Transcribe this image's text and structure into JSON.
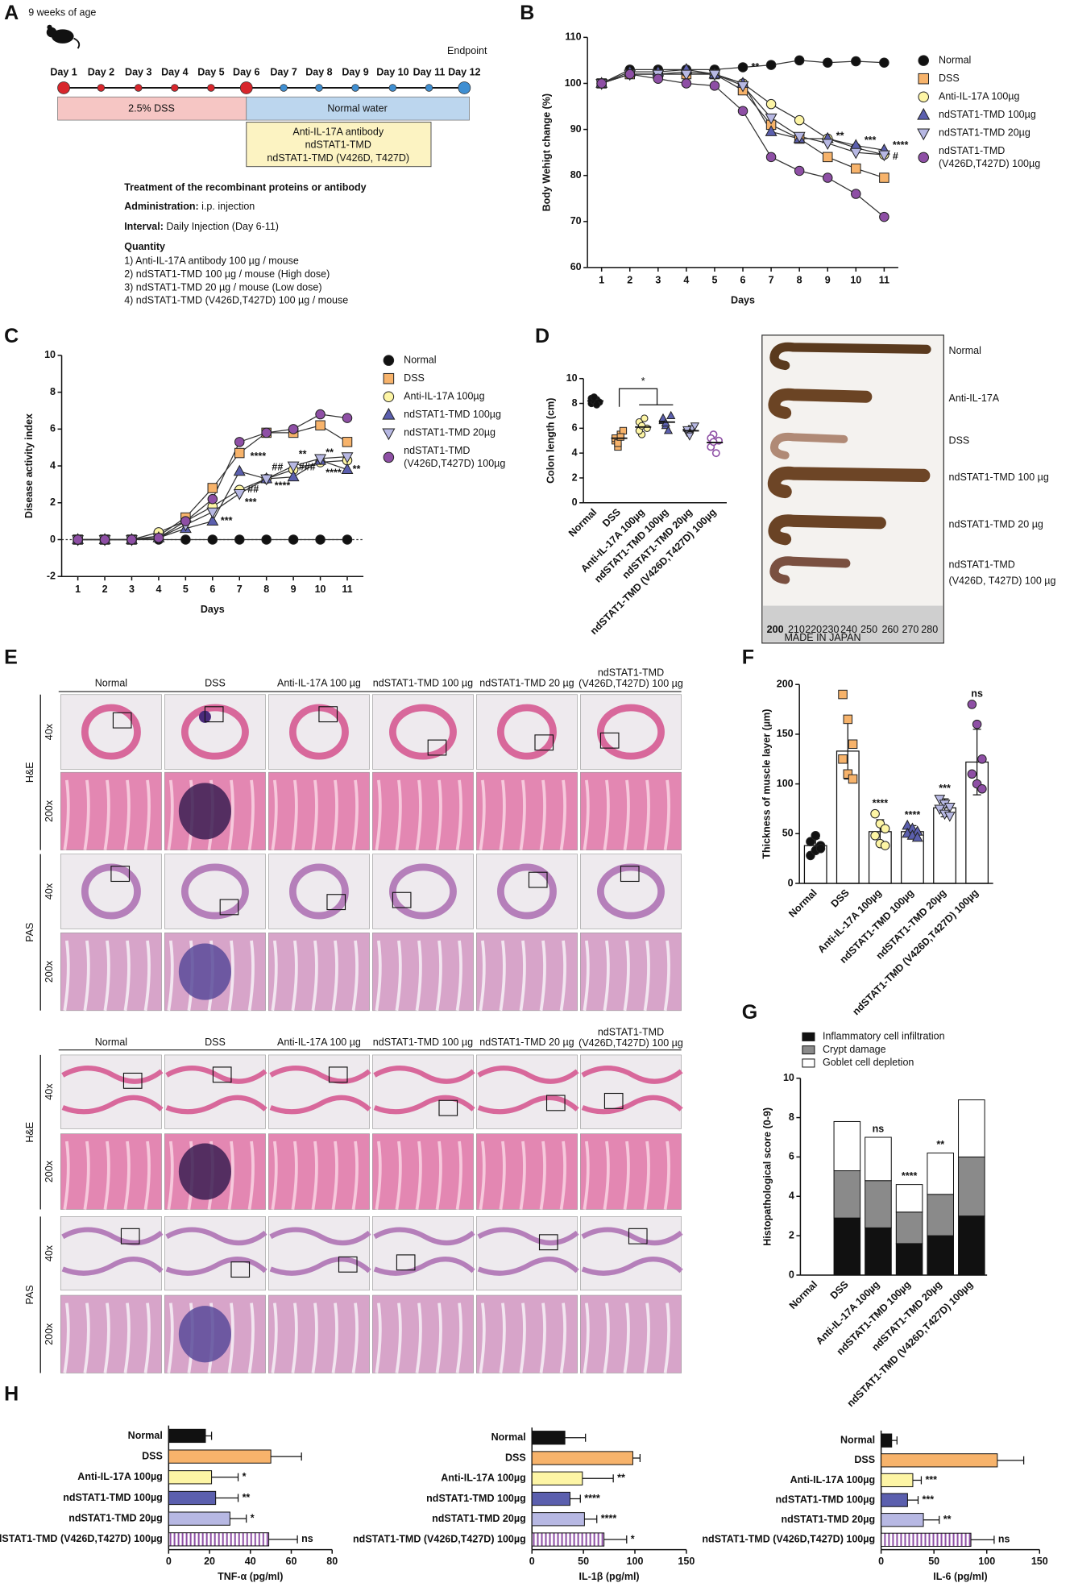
{
  "panel_a": {
    "label": "A",
    "age": "9 weeks of age",
    "endpoint": "Endpoint",
    "days": [
      "Day 1",
      "Day 2",
      "Day 3",
      "Day 4",
      "Day 5",
      "Day 6",
      "Day 7",
      "Day 8",
      "Day 9",
      "Day 10",
      "Day 11",
      "Day 12"
    ],
    "phases": [
      "2.5% DSS",
      "Normal water"
    ],
    "treatments": [
      "Anti-IL-17A antibody",
      "ndSTAT1-TMD",
      "ndSTAT1-TMD (V426D, T427D)"
    ],
    "heading": "Treatment of the recombinant proteins or antibody",
    "administration": {
      "label": "Administration:",
      "value": "i.p. injection"
    },
    "interval": {
      "label": "Interval:",
      "value": "Daily Injection (Day 6-11)"
    },
    "quantity": "Quantity",
    "quantities": [
      "1) Anti-IL-17A antibody 100 µg / mouse",
      "2) ndSTAT1-TMD 100 µg / mouse (High dose)",
      "3) ndSTAT1-TMD 20 µg / mouse (Low dose)",
      "4) ndSTAT1-TMD (V426D,T427D) 100 µg / mouse"
    ]
  },
  "panel_d_photo": {
    "label": "D",
    "samples": [
      "Normal",
      "Anti-IL-17A",
      "DSS",
      "ndSTAT1-TMD 100 µg",
      "ndSTAT1-TMD 20 µg",
      "ndSTAT1-TMD (V426D, T427D) 100 µg"
    ],
    "ruler_labels": [
      "200",
      "210",
      "220",
      "230",
      "240",
      "250",
      "260",
      "270",
      "280"
    ],
    "ruler_note": "MADE IN JAPAN"
  },
  "panel_e": {
    "label": "E",
    "columns": [
      "Normal",
      "DSS",
      "Anti-IL-17A 100 µg",
      "ndSTAT1-TMD 100 µg",
      "ndSTAT1-TMD 20 µg",
      "ndSTAT1-TMD (V426D,T427D) 100 µg"
    ],
    "stains": [
      "H&E",
      "PAS"
    ],
    "magnifications": [
      "40x",
      "200x"
    ]
  },
  "chart_data": [
    {
      "type": "line",
      "label": "B",
      "y_label": "Body Wehigt change (%)",
      "x_label": "Days",
      "x": [
        1,
        2,
        3,
        4,
        5,
        6,
        7,
        8,
        9,
        10,
        11
      ],
      "xlim": [
        0.5,
        11.5
      ],
      "xticks": [
        1,
        2,
        3,
        4,
        5,
        6,
        7,
        8,
        9,
        10,
        11
      ],
      "ylim": [
        60,
        110
      ],
      "yticks": [
        60,
        70,
        80,
        90,
        100,
        110
      ],
      "series": [
        {
          "name": "Normal",
          "color": "#111111",
          "marker": "circle",
          "values": [
            100,
            103,
            103,
            103,
            103,
            103.5,
            104,
            105,
            104.5,
            104.8,
            104.5
          ]
        },
        {
          "name": "DSS",
          "color": "#f7b36b",
          "marker": "square",
          "values": [
            100,
            102,
            102,
            102,
            102,
            98.5,
            91,
            88,
            84,
            81.5,
            79.5
          ]
        },
        {
          "name": "Anti-IL-17A 100µg",
          "color": "#fdf5a5",
          "marker": "circle",
          "values": [
            100,
            102,
            102,
            102.5,
            102,
            100,
            95.5,
            92,
            88,
            86,
            84.5
          ]
        },
        {
          "name": "ndSTAT1-TMD 100µg",
          "color": "#5b5fae",
          "marker": "triangle-up",
          "values": [
            100,
            102.5,
            102.5,
            103,
            102,
            100,
            89.5,
            88,
            88,
            86.5,
            85.5
          ]
        },
        {
          "name": "ndSTAT1-TMD 20µg",
          "color": "#b7b8e3",
          "marker": "triangle-down",
          "values": [
            100,
            102,
            102,
            102,
            102,
            99.5,
            92.5,
            88.5,
            87,
            85,
            84.5
          ]
        },
        {
          "name": "ndSTAT1-TMD (V426D,T427D) 100µg",
          "color": "#8e4fa5",
          "marker": "circle",
          "values": [
            100,
            102,
            101,
            100,
            99.5,
            94,
            84,
            81,
            79.5,
            76,
            71
          ]
        }
      ],
      "annotations": [
        {
          "x": 6.3,
          "y": 103.5,
          "text": "**",
          "color": "#5b5fae"
        },
        {
          "x": 9.3,
          "y": 88.5,
          "text": "**",
          "color": "#5b5fae"
        },
        {
          "x": 10.3,
          "y": 87.5,
          "text": "***",
          "color": "#5b5fae"
        },
        {
          "x": 11.3,
          "y": 86.5,
          "text": "****",
          "color": "#5b5fae"
        },
        {
          "x": 11.3,
          "y": 84,
          "text": "#",
          "color": "#9aa82a"
        }
      ]
    },
    {
      "type": "line",
      "label": "C",
      "y_label": "Disease activity index",
      "x_label": "Days",
      "x": [
        1,
        2,
        3,
        4,
        5,
        6,
        7,
        8,
        9,
        10,
        11
      ],
      "xlim": [
        0.4,
        11.6
      ],
      "xticks": [
        1,
        2,
        3,
        4,
        5,
        6,
        7,
        8,
        9,
        10,
        11
      ],
      "ylim": [
        -2,
        10
      ],
      "yticks": [
        -2,
        0,
        2,
        4,
        6,
        8,
        10
      ],
      "reference_line": 0,
      "series": [
        {
          "name": "Normal",
          "color": "#111111",
          "marker": "circle",
          "values": [
            0,
            0,
            0,
            0,
            0,
            0,
            0,
            0,
            0,
            0,
            0
          ]
        },
        {
          "name": "DSS",
          "color": "#f7b36b",
          "marker": "square",
          "values": [
            0,
            0,
            0,
            0.2,
            1.2,
            2.8,
            4.7,
            5.8,
            5.8,
            6.2,
            5.3
          ]
        },
        {
          "name": "Anti-IL-17A 100µg",
          "color": "#fdf5a5",
          "marker": "circle",
          "values": [
            0,
            0,
            0,
            0.4,
            1.0,
            1.8,
            2.7,
            3.3,
            3.8,
            4.2,
            4.3
          ]
        },
        {
          "name": "ndSTAT1-TMD 100µg",
          "color": "#5b5fae",
          "marker": "triangle-up",
          "values": [
            0,
            0,
            0,
            0.1,
            0.6,
            1.0,
            3.7,
            3.3,
            3.4,
            4.3,
            3.8
          ]
        },
        {
          "name": "ndSTAT1-TMD 20µg",
          "color": "#b7b8e3",
          "marker": "triangle-down",
          "values": [
            0,
            0,
            0,
            0.1,
            0.8,
            1.5,
            2.5,
            3.3,
            4.0,
            4.4,
            4.5
          ]
        },
        {
          "name": "ndSTAT1-TMD (V426D,T427D) 100µg",
          "color": "#8e4fa5",
          "marker": "circle",
          "values": [
            0,
            0,
            0,
            0.1,
            1.0,
            2.2,
            5.3,
            5.8,
            6.0,
            6.8,
            6.6
          ]
        }
      ],
      "annotations": [
        {
          "x": 6.3,
          "y": 1.0,
          "text": "***",
          "color": "#5b5fae"
        },
        {
          "x": 7.2,
          "y": 2.0,
          "text": "***",
          "color": "#5b5fae"
        },
        {
          "x": 7.3,
          "y": 2.7,
          "text": "##",
          "color": "#9aa82a"
        },
        {
          "x": 7.4,
          "y": 4.5,
          "text": "****",
          "color": "#9b9cd6"
        },
        {
          "x": 8.2,
          "y": 3.9,
          "text": "##",
          "color": "#9aa82a"
        },
        {
          "x": 8.3,
          "y": 2.9,
          "text": "****",
          "color": "#5b5fae"
        },
        {
          "x": 9.2,
          "y": 3.9,
          "text": "###",
          "color": "#9aa82a"
        },
        {
          "x": 9.2,
          "y": 4.6,
          "text": "**",
          "color": "#9b9cd6"
        },
        {
          "x": 10.2,
          "y": 3.6,
          "text": "****",
          "color": "#5b5fae"
        },
        {
          "x": 10.2,
          "y": 4.7,
          "text": "**",
          "color": "#9b9cd6"
        },
        {
          "x": 11.2,
          "y": 3.8,
          "text": "**",
          "color": "#5b5fae"
        }
      ]
    },
    {
      "type": "strip",
      "y_label": "Colon length (cm)",
      "categories": [
        "Normal",
        "DSS",
        "Anti-IL-17A 100µg",
        "ndSTAT1-TMD 100µg",
        "ndSTAT1-TMD 20µg",
        "ndSTAT1-TMD (V426D,T427D) 100µg"
      ],
      "colors": [
        "#111111",
        "#f7b36b",
        "#fdf5a5",
        "#5b5fae",
        "#b7b8e3",
        "#8e4fa5"
      ],
      "markers": [
        "circle",
        "square",
        "circle",
        "triangle-up",
        "triangle-down",
        "circle-open"
      ],
      "ylim": [
        0,
        10
      ],
      "yticks": [
        0,
        2,
        4,
        6,
        8,
        10
      ],
      "values": [
        [
          8.0,
          8.2,
          8.3,
          8.1,
          8.4,
          8.5,
          7.9
        ],
        [
          5.0,
          4.5,
          5.5,
          5.8,
          5.2,
          4.8,
          5.3
        ],
        [
          6.5,
          5.5,
          6.8,
          6.0,
          5.8,
          6.2
        ],
        [
          6.6,
          6.2,
          5.8,
          7.0,
          6.8,
          6.4
        ],
        [
          5.7,
          5.5,
          6.0,
          6.2,
          5.9,
          5.4
        ],
        [
          4.5,
          5.5,
          4.0,
          5.0,
          5.2,
          4.9
        ]
      ],
      "means": [
        8.2,
        5.2,
        6.1,
        6.5,
        5.8,
        4.85
      ],
      "comparison": "*"
    },
    {
      "type": "bar_points",
      "label": "F",
      "y_label": "Thickness of muscle layer (µm)",
      "categories": [
        "Normal",
        "DSS",
        "Anti-IL-17A 100µg",
        "ndSTAT1-TMD 100µg",
        "ndSTAT1-TMD 20µg",
        "ndSTAT1-TMD (V426D,T427D) 100µg"
      ],
      "colors": [
        "#111111",
        "#f7b36b",
        "#fdf5a5",
        "#5b5fae",
        "#b7b8e3",
        "#8e4fa5"
      ],
      "markers": [
        "circle",
        "square",
        "circle",
        "triangle-up",
        "triangle-down",
        "circle"
      ],
      "ylim": [
        0,
        200
      ],
      "yticks": [
        0,
        50,
        100,
        150,
        200
      ],
      "values": [
        38,
        133,
        52,
        52,
        76,
        122
      ],
      "errors": [
        7,
        28,
        12,
        6,
        9,
        33
      ],
      "points": [
        [
          28,
          33,
          38,
          42,
          48,
          35
        ],
        [
          190,
          165,
          140,
          125,
          110,
          105
        ],
        [
          70,
          60,
          55,
          48,
          40,
          38
        ],
        [
          58,
          55,
          52,
          50,
          48,
          46
        ],
        [
          85,
          80,
          77,
          75,
          70,
          68
        ],
        [
          180,
          160,
          125,
          110,
          100,
          95
        ]
      ],
      "significance": [
        null,
        null,
        "****",
        "****",
        "***",
        "ns"
      ]
    },
    {
      "type": "stacked_bar",
      "label": "G",
      "y_label": "Histopathological score (0-9)",
      "categories": [
        "Normal",
        "DSS",
        "Anti-IL-17A 100µg",
        "ndSTAT1-TMD 100µg",
        "ndSTAT1-TMD 20µg",
        "ndSTAT1-TMD (V426D,T427D) 100µg"
      ],
      "ylim": [
        0,
        10
      ],
      "yticks": [
        0,
        2,
        4,
        6,
        8,
        10
      ],
      "series": [
        {
          "name": "Inflammatory cell infiltration",
          "color": "#111111",
          "values": [
            0,
            2.9,
            2.4,
            1.6,
            2.0,
            3.0
          ]
        },
        {
          "name": "Crypt damage",
          "color": "#8a8a8a",
          "values": [
            0,
            2.4,
            2.4,
            1.6,
            2.1,
            3.0
          ]
        },
        {
          "name": "Goblet cell depletion",
          "color": "#ffffff",
          "values": [
            0,
            2.5,
            2.2,
            1.4,
            2.1,
            2.9
          ]
        }
      ],
      "significance": [
        null,
        null,
        "ns",
        "****",
        "**",
        null
      ]
    },
    {
      "type": "hbar",
      "label": "H",
      "x_label": "TNF-α (pg/ml)",
      "categories": [
        "Normal",
        "DSS",
        "Anti-IL-17A 100µg",
        "ndSTAT1-TMD 100µg",
        "ndSTAT1-TMD 20µg",
        "ndSTAT1-TMD (V426D,T427D) 100µg"
      ],
      "colors": [
        "#111111",
        "#f7b36b",
        "#fdf5a5",
        "#5b5fae",
        "#b7b8e3",
        "#8e4fa5"
      ],
      "hatched": [
        false,
        false,
        false,
        false,
        false,
        true
      ],
      "xlim": [
        0,
        80
      ],
      "xticks": [
        0,
        20,
        40,
        60,
        80
      ],
      "values": [
        18,
        50,
        21,
        23,
        30,
        49
      ],
      "errors": [
        3,
        15,
        13,
        11,
        8,
        14
      ],
      "significance": [
        null,
        null,
        "*",
        "**",
        "*",
        "ns"
      ]
    },
    {
      "type": "hbar",
      "x_label": "IL-1β (pg/ml)",
      "categories": [
        "Normal",
        "DSS",
        "Anti-IL-17A 100µg",
        "ndSTAT1-TMD 100µg",
        "ndSTAT1-TMD 20µg",
        "ndSTAT1-TMD (V426D,T427D) 100µg"
      ],
      "colors": [
        "#111111",
        "#f7b36b",
        "#fdf5a5",
        "#5b5fae",
        "#b7b8e3",
        "#8e4fa5"
      ],
      "hatched": [
        false,
        false,
        false,
        false,
        false,
        true
      ],
      "xlim": [
        0,
        150
      ],
      "xticks": [
        0,
        50,
        100,
        150
      ],
      "values": [
        32,
        98,
        49,
        37,
        51,
        70
      ],
      "errors": [
        20,
        7,
        30,
        10,
        12,
        22
      ],
      "significance": [
        null,
        null,
        "**",
        "****",
        "****",
        "*"
      ]
    },
    {
      "type": "hbar",
      "x_label": "IL-6 (pg/ml)",
      "categories": [
        "Normal",
        "DSS",
        "Anti-IL-17A 100µg",
        "ndSTAT1-TMD 100µg",
        "ndSTAT1-TMD 20µg",
        "ndSTAT1-TMD (V426D,T427D) 100µg"
      ],
      "colors": [
        "#111111",
        "#f7b36b",
        "#fdf5a5",
        "#5b5fae",
        "#b7b8e3",
        "#8e4fa5"
      ],
      "hatched": [
        false,
        false,
        false,
        false,
        false,
        true
      ],
      "xlim": [
        0,
        150
      ],
      "xticks": [
        0,
        50,
        100,
        150
      ],
      "values": [
        10,
        110,
        30,
        25,
        40,
        85
      ],
      "errors": [
        5,
        25,
        8,
        10,
        15,
        22
      ],
      "significance": [
        null,
        null,
        "***",
        "***",
        "**",
        "ns"
      ]
    }
  ]
}
